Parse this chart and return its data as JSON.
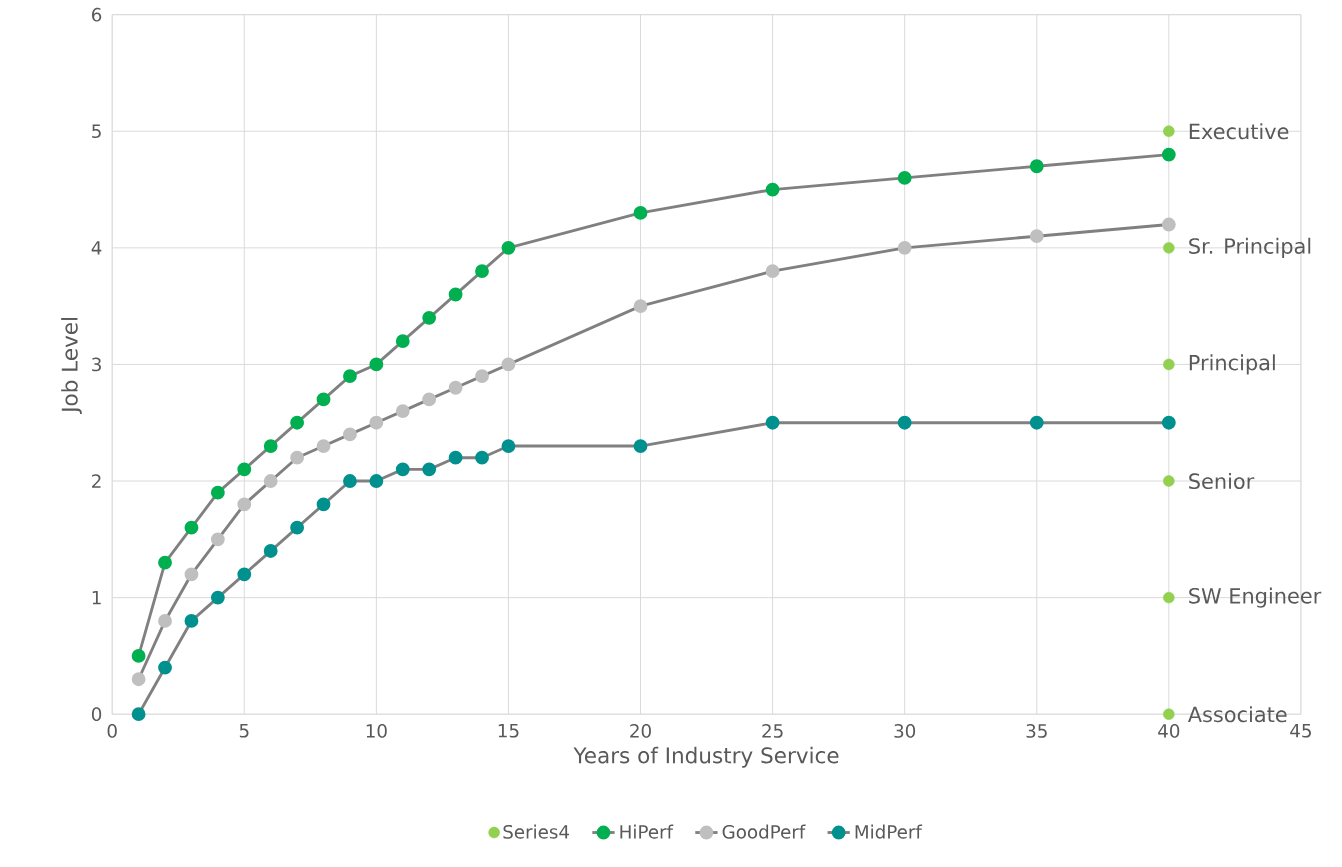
{
  "chart_data": {
    "type": "line",
    "xlabel": "Years of Industry Service",
    "ylabel": "Job Level",
    "xlim": [
      0,
      45
    ],
    "xticks": [
      0,
      5,
      10,
      15,
      20,
      25,
      30,
      35,
      40,
      45
    ],
    "ylim": [
      0,
      6
    ],
    "yticks": [
      0,
      1,
      2,
      3,
      4,
      5,
      6
    ],
    "grid": true,
    "legend": "bottom",
    "marker": "circle",
    "series": [
      {
        "name": "Series4",
        "type": "scatter",
        "color": "#92d050",
        "x": [
          40,
          40,
          40,
          40,
          40,
          40
        ],
        "values": [
          0,
          1,
          2,
          3,
          4,
          5
        ],
        "value_labels": [
          "Associate",
          "SW Engineer",
          "Senior",
          "Principal",
          "Sr. Principal",
          "Executive"
        ]
      },
      {
        "name": "HiPerf",
        "color": "#00b050",
        "x": [
          1,
          2,
          3,
          4,
          5,
          6,
          7,
          8,
          9,
          10,
          11,
          12,
          13,
          14,
          15,
          20,
          25,
          30,
          35,
          40
        ],
        "values": [
          0.5,
          1.3,
          1.6,
          1.9,
          2.1,
          2.3,
          2.5,
          2.7,
          2.9,
          3.0,
          3.2,
          3.4,
          3.6,
          3.8,
          4.0,
          4.3,
          4.5,
          4.6,
          4.7,
          4.8
        ]
      },
      {
        "name": "GoodPerf",
        "color": "#bfbfbf",
        "x": [
          1,
          2,
          3,
          4,
          5,
          6,
          7,
          8,
          9,
          10,
          11,
          12,
          13,
          14,
          15,
          20,
          25,
          30,
          35,
          40
        ],
        "values": [
          0.3,
          0.8,
          1.2,
          1.5,
          1.8,
          2.0,
          2.2,
          2.3,
          2.4,
          2.5,
          2.6,
          2.7,
          2.8,
          2.9,
          3.0,
          3.5,
          3.8,
          4.0,
          4.1,
          4.2
        ]
      },
      {
        "name": "MidPerf",
        "color": "#00918f",
        "x": [
          1,
          2,
          3,
          4,
          5,
          6,
          7,
          8,
          9,
          10,
          11,
          12,
          13,
          14,
          15,
          20,
          25,
          30,
          35,
          40
        ],
        "values": [
          0,
          0.4,
          0.8,
          1.0,
          1.2,
          1.4,
          1.6,
          1.8,
          2.0,
          2.0,
          2.1,
          2.1,
          2.2,
          2.2,
          2.3,
          2.3,
          2.5,
          2.5,
          2.5,
          2.5
        ]
      }
    ]
  }
}
